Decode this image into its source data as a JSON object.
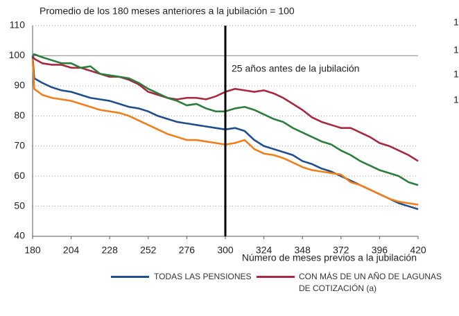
{
  "chart_data": {
    "type": "line",
    "title": "Promedio de los 180 meses anteriores a la jubilación = 100",
    "x_label": "Número de meses previos a la jubilación",
    "annotation": "25 años antes de la jubilación",
    "vline": 300,
    "hline": 100,
    "side_labels": [
      "1",
      "1",
      "1",
      "1"
    ],
    "x": [
      180,
      181,
      186,
      192,
      198,
      204,
      210,
      216,
      222,
      228,
      234,
      240,
      246,
      252,
      258,
      264,
      270,
      276,
      282,
      288,
      294,
      300,
      306,
      312,
      318,
      324,
      330,
      336,
      342,
      348,
      354,
      360,
      366,
      372,
      378,
      384,
      390,
      396,
      402,
      408,
      414,
      420
    ],
    "series": [
      {
        "name": "TODAS LAS PENSIONES",
        "color": "#1f4e8c",
        "values": [
          100,
          92.5,
          91,
          89.5,
          88.5,
          88,
          87,
          86,
          85.5,
          85,
          84,
          83,
          82.5,
          81.5,
          80,
          79,
          78,
          77.5,
          77,
          76.5,
          76,
          75.5,
          76,
          75,
          72,
          70,
          69,
          68,
          67,
          65,
          64,
          62.5,
          61.5,
          60,
          58.5,
          57,
          55.5,
          54,
          52.5,
          51,
          50,
          49
        ]
      },
      {
        "name": "CON MÁS DE UN AÑO DE LAGUNAS DE COTIZACIÓN (a)",
        "color": "#a8283f",
        "values": [
          100,
          99,
          97.5,
          97,
          97,
          96,
          96,
          95,
          94,
          93,
          93,
          92,
          90.5,
          88,
          87,
          86,
          85.5,
          86,
          86,
          85.5,
          86.5,
          88,
          89,
          88.5,
          88,
          88.5,
          87.5,
          86,
          84,
          82,
          79.5,
          78,
          77,
          76,
          76,
          74.5,
          73,
          71,
          70,
          68.5,
          67,
          65
        ]
      },
      {
        "color": "#2a7d3c",
        "values": [
          100,
          100.5,
          99.5,
          98.5,
          97.5,
          97.5,
          96,
          96.5,
          94,
          93.5,
          93,
          92.5,
          91,
          89,
          87.5,
          86,
          85,
          83.5,
          84,
          82.5,
          81.5,
          81.5,
          82.5,
          83,
          82,
          80.5,
          79,
          78,
          76,
          74.5,
          73,
          71.5,
          70.5,
          68.5,
          67,
          65,
          63.5,
          62,
          61,
          60,
          58,
          57
        ]
      },
      {
        "color": "#f07f1a",
        "values": [
          99,
          89,
          87,
          86,
          85.5,
          85,
          84,
          83,
          82,
          81.5,
          81,
          80,
          78.5,
          77,
          75.5,
          74,
          73,
          72,
          72,
          71.5,
          71,
          70.5,
          71,
          72,
          69,
          67.5,
          67,
          66,
          64.5,
          63,
          62,
          61.5,
          61,
          60.5,
          58,
          57,
          55.5,
          54,
          52.5,
          51.5,
          51,
          50.5
        ]
      }
    ],
    "xlim": [
      180,
      420
    ],
    "xticks": [
      180,
      204,
      228,
      252,
      276,
      300,
      324,
      348,
      372,
      396,
      420
    ],
    "ylim": [
      40,
      110
    ],
    "yticks": [
      40,
      50,
      60,
      70,
      80,
      90,
      100,
      110
    ],
    "grid": true
  }
}
